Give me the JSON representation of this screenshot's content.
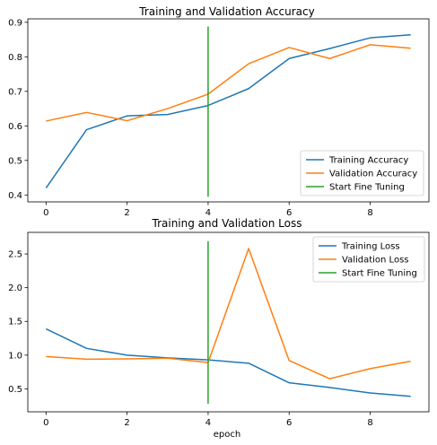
{
  "colors": {
    "training": "#1f77b4",
    "validation": "#ff7f0e",
    "fine_tuning": "#2ca02c"
  },
  "chart_data": [
    {
      "type": "line",
      "title": "Training and Validation Accuracy",
      "xlabel": "",
      "ylabel": "",
      "xlim": [
        -0.45,
        9.45
      ],
      "ylim": [
        0.38,
        0.91
      ],
      "xticks": [
        0,
        2,
        4,
        6,
        8
      ],
      "yticks": [
        0.4,
        0.5,
        0.6,
        0.7,
        0.8,
        0.9
      ],
      "grid": false,
      "legend_position": "lower-right",
      "series": [
        {
          "name": "Training Accuracy",
          "color": "#1f77b4",
          "x": [
            0,
            1,
            2,
            3,
            4,
            5,
            6,
            7,
            8,
            9
          ],
          "y": [
            0.42,
            0.589,
            0.629,
            0.633,
            0.659,
            0.708,
            0.795,
            0.824,
            0.855,
            0.864
          ]
        },
        {
          "name": "Validation Accuracy",
          "color": "#ff7f0e",
          "x": [
            0,
            1,
            2,
            3,
            4,
            5,
            6,
            7,
            8,
            9
          ],
          "y": [
            0.614,
            0.639,
            0.615,
            0.65,
            0.692,
            0.78,
            0.827,
            0.795,
            0.835,
            0.825
          ]
        },
        {
          "name": "Start Fine Tuning",
          "color": "#2ca02c",
          "x": [
            4,
            4
          ],
          "y": [
            0.395,
            0.888
          ]
        }
      ]
    },
    {
      "type": "line",
      "title": "Training and Validation Loss",
      "xlabel": "epoch",
      "ylabel": "",
      "xlim": [
        -0.45,
        9.45
      ],
      "ylim": [
        0.16,
        2.82
      ],
      "xticks": [
        0,
        2,
        4,
        6,
        8
      ],
      "yticks": [
        0.5,
        1.0,
        1.5,
        2.0,
        2.5
      ],
      "grid": false,
      "legend_position": "upper-right",
      "series": [
        {
          "name": "Training Loss",
          "color": "#1f77b4",
          "x": [
            0,
            1,
            2,
            3,
            4,
            5,
            6,
            7,
            8,
            9
          ],
          "y": [
            1.39,
            1.1,
            1.0,
            0.96,
            0.93,
            0.88,
            0.59,
            0.52,
            0.44,
            0.39
          ]
        },
        {
          "name": "Validation Loss",
          "color": "#ff7f0e",
          "x": [
            0,
            1,
            2,
            3,
            4,
            5,
            6,
            7,
            8,
            9
          ],
          "y": [
            0.98,
            0.94,
            0.945,
            0.955,
            0.89,
            2.58,
            0.92,
            0.65,
            0.8,
            0.91
          ]
        },
        {
          "name": "Start Fine Tuning",
          "color": "#2ca02c",
          "x": [
            4,
            4
          ],
          "y": [
            0.28,
            2.69
          ]
        }
      ]
    }
  ]
}
